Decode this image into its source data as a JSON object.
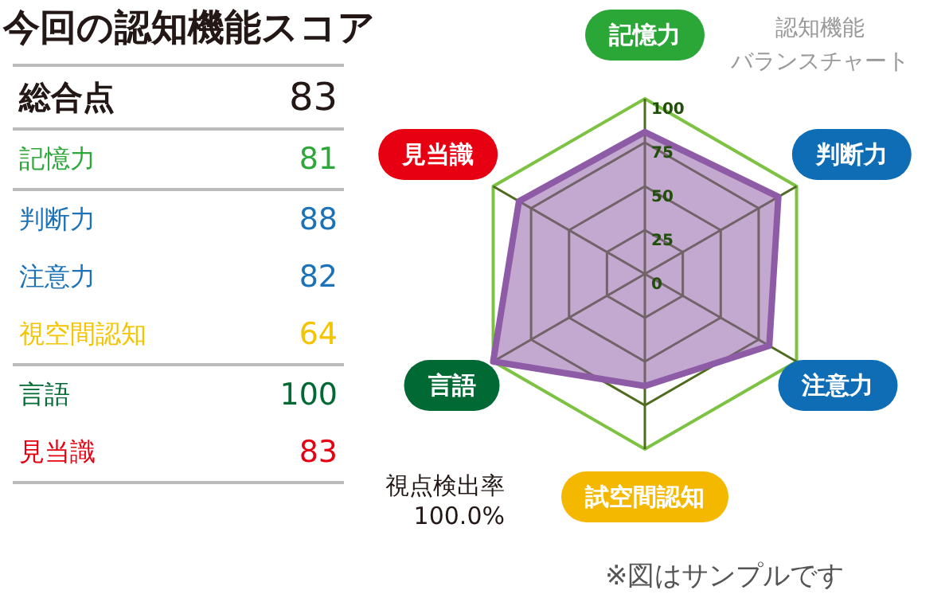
{
  "chart_data": [
    {
      "type": "other",
      "title": "今回の認知機能スコア",
      "categories": [
        "総合点",
        "記憶力",
        "判断力",
        "注意力",
        "視空間認知",
        "言語",
        "見当識"
      ],
      "values": [
        83,
        81,
        88,
        82,
        64,
        100,
        83
      ],
      "colors": [
        "#231815",
        "#2ea83a",
        "#1b72b8",
        "#1b72b8",
        "#f5c400",
        "#006934",
        "#e60012"
      ],
      "data_labels": true
    },
    {
      "type": "radar",
      "title": "認知機能",
      "subtitle": "バランスチャート",
      "categories": [
        "記憶力",
        "判断力",
        "注意力",
        "試空間認知",
        "言語",
        "見当識"
      ],
      "colors": [
        "#2aa737",
        "#0f6db5",
        "#0f6db5",
        "#f5b800",
        "#006934",
        "#e60012"
      ],
      "series": [
        {
          "color": "#8e5ca6",
          "values": [
            81,
            88,
            82,
            64,
            100,
            83
          ]
        }
      ],
      "ylim": [
        0,
        100
      ],
      "yticks": [
        0,
        25,
        50,
        75,
        100
      ],
      "grid": true,
      "legend": false,
      "marker": "none",
      "annotations": [
        "視点検出率\n100.0%",
        "※図はサンプルです"
      ]
    }
  ]
}
